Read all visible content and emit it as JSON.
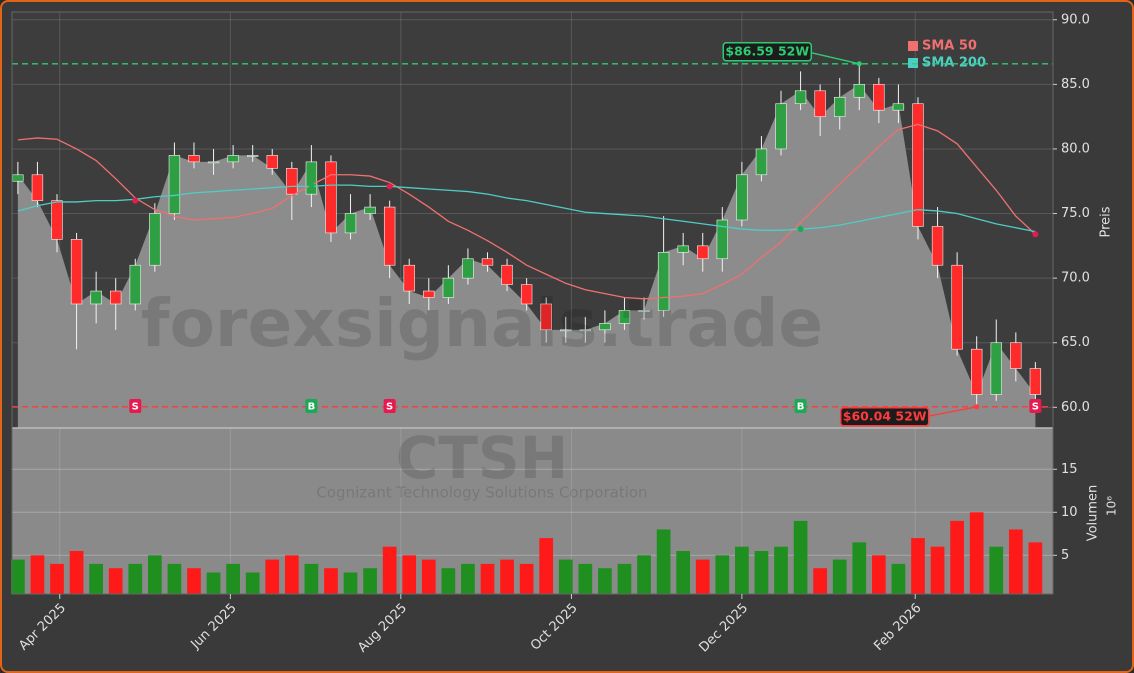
{
  "chart_data": [
    {
      "type": "candlestick",
      "watermark": "forexsignals.trade",
      "ticker": "CTSH",
      "company": "Cognizant Technology Solutions Corporation",
      "ylabel": "Preis",
      "xlim": [
        -0.3,
        52.9
      ],
      "ylim": [
        58.4,
        90.6
      ],
      "yticks": [
        {
          "value": 60,
          "label": "60.0"
        },
        {
          "value": 65,
          "label": "65.0"
        },
        {
          "value": 70,
          "label": "70.0"
        },
        {
          "value": 75,
          "label": "75.0"
        },
        {
          "value": 80,
          "label": "80.0"
        },
        {
          "value": 85,
          "label": "85.0"
        },
        {
          "value": 90,
          "label": "90.0"
        }
      ],
      "grid": true,
      "color_up": "#2ea043",
      "color_down": "#ff2a2a",
      "area_color": "#8c8c8c",
      "open": [
        77.5,
        78,
        76,
        73,
        68,
        69,
        68,
        71,
        75,
        79.5,
        79,
        79,
        79.5,
        79.5,
        78.5,
        76.5,
        79,
        73.5,
        75,
        75.5,
        71,
        69,
        68.5,
        70,
        71.5,
        71,
        69.5,
        68,
        66,
        66,
        66,
        66.5,
        67.5,
        67.5,
        72,
        72.5,
        71.5,
        74.5,
        78,
        80,
        83.5,
        84.5,
        82.5,
        84,
        85,
        83,
        83.5,
        74,
        71,
        64.5,
        61,
        65,
        63
      ],
      "high": [
        79,
        79,
        76.5,
        73.5,
        70.5,
        70,
        71.5,
        75.8,
        80.5,
        80.5,
        80,
        80.3,
        80.3,
        80,
        79,
        80.3,
        79.5,
        76.5,
        76.5,
        76,
        71.5,
        70,
        71,
        72.3,
        72,
        71.5,
        70,
        68.5,
        67,
        67,
        67.5,
        68.5,
        68.5,
        74.8,
        73.5,
        73.5,
        75.5,
        79,
        81,
        84.5,
        86,
        85,
        85.5,
        86.59,
        85.5,
        85,
        84,
        75.5,
        72,
        65.5,
        66.8,
        65.8,
        63.5
      ],
      "low": [
        76.5,
        75.5,
        72,
        64.5,
        66.5,
        66,
        67.5,
        70.5,
        74.5,
        78.5,
        78,
        78.5,
        79,
        78,
        74.5,
        75.5,
        72.8,
        73,
        74.5,
        70,
        68,
        67.5,
        68,
        69.5,
        70.5,
        69,
        67.5,
        65,
        65,
        65,
        65,
        66,
        66.8,
        67,
        71,
        70.5,
        70.5,
        74,
        77.5,
        79.5,
        83,
        81,
        81.5,
        83,
        82,
        82,
        73,
        70,
        64,
        60.04,
        60.5,
        62,
        60.5
      ],
      "close": [
        78,
        76,
        73,
        68,
        69,
        68,
        71,
        75,
        79.5,
        79,
        79,
        79.5,
        79.5,
        78.5,
        76.5,
        79,
        73.5,
        75,
        75.5,
        71,
        69,
        68.5,
        70,
        71.5,
        71,
        69.5,
        68,
        66,
        66,
        66,
        66.5,
        67.5,
        67.5,
        72,
        72.5,
        71.5,
        74.5,
        78,
        80,
        83.5,
        84.5,
        82.5,
        84,
        85,
        83,
        83.5,
        74,
        71,
        64.5,
        61,
        65,
        63,
        61
      ],
      "series": [
        {
          "name": "SMA 50",
          "color": "#f07070",
          "values": [
            80.7,
            80.85,
            80.75,
            80.0,
            79.1,
            77.7,
            76.2,
            75.3,
            74.8,
            74.5,
            74.6,
            74.7,
            75.0,
            75.4,
            76.4,
            77.2,
            78.0,
            78.0,
            77.9,
            77.4,
            76.5,
            75.5,
            74.4,
            73.7,
            72.9,
            72.0,
            71.0,
            70.3,
            69.6,
            69.1,
            68.8,
            68.5,
            68.4,
            68.5,
            68.6,
            68.8,
            69.5,
            70.3,
            71.6,
            72.8,
            74.3,
            75.8,
            77.3,
            78.7,
            80.2,
            81.5,
            81.9,
            81.4,
            80.4,
            78.6,
            76.8,
            74.8,
            73.4
          ]
        },
        {
          "name": "SMA 200",
          "color": "#4ecdc4",
          "values": [
            75.2,
            75.6,
            75.9,
            75.9,
            76.0,
            76.0,
            76.1,
            76.3,
            76.4,
            76.6,
            76.7,
            76.8,
            76.9,
            77.0,
            77.1,
            77.1,
            77.2,
            77.2,
            77.1,
            77.1,
            77.0,
            76.9,
            76.8,
            76.7,
            76.5,
            76.2,
            76.0,
            75.7,
            75.4,
            75.1,
            75.0,
            74.9,
            74.8,
            74.6,
            74.4,
            74.2,
            74.0,
            73.8,
            73.7,
            73.7,
            73.8,
            73.9,
            74.1,
            74.4,
            74.7,
            75.0,
            75.3,
            75.2,
            75.0,
            74.6,
            74.2,
            73.9,
            73.6
          ]
        }
      ],
      "legend": "upper right",
      "hlines": [
        {
          "value": 86.59,
          "label": "$86.59 52W",
          "index": 43,
          "color": "#2ecc71"
        },
        {
          "value": 60.04,
          "label": "$60.04 52W",
          "index": 49,
          "color": "#ff3b3b"
        }
      ],
      "signals": [
        {
          "label": "S",
          "index": 6,
          "value": 76.0,
          "color": "#e8194f"
        },
        {
          "label": "B",
          "index": 15,
          "value": 77.2,
          "color": "#1aaa55"
        },
        {
          "label": "S",
          "index": 19,
          "value": 77.1,
          "color": "#e8194f"
        },
        {
          "label": "B",
          "index": 40,
          "value": 73.8,
          "color": "#1aaa55"
        },
        {
          "label": "S",
          "index": 52,
          "value": 73.4,
          "color": "#e8194f"
        }
      ]
    },
    {
      "type": "bar",
      "ylabel": "Volumen",
      "ylabel_scale": "10⁶",
      "xlim": [
        -0.3,
        52.9
      ],
      "ylim": [
        0.5,
        19.8
      ],
      "yticks": [
        5,
        10,
        15
      ],
      "grid": true,
      "xticks": [
        {
          "value": 2.14,
          "label": "Apr 2025"
        },
        {
          "value": 10.86,
          "label": "Jun 2025"
        },
        {
          "value": 19.57,
          "label": "Aug 2025"
        },
        {
          "value": 28.29,
          "label": "Oct 2025"
        },
        {
          "value": 37,
          "label": "Dec 2025"
        },
        {
          "value": 45.86,
          "label": "Feb 2026"
        }
      ],
      "color_up": "#1f8f1f",
      "color_down": "#ff1a1a",
      "values": [
        4.5,
        5,
        4,
        5.5,
        4,
        3.5,
        4,
        5,
        4,
        3.5,
        3,
        4,
        3,
        4.5,
        5,
        4,
        3.5,
        3,
        3.5,
        6,
        5,
        4.5,
        3.5,
        4,
        4,
        4.5,
        4,
        7,
        4.5,
        4,
        3.5,
        4,
        5,
        8,
        5.5,
        4.5,
        5,
        6,
        5.5,
        6,
        9,
        3.5,
        4.5,
        6.5,
        5,
        4,
        7,
        6,
        9,
        10,
        6,
        8,
        6.5
      ]
    }
  ]
}
